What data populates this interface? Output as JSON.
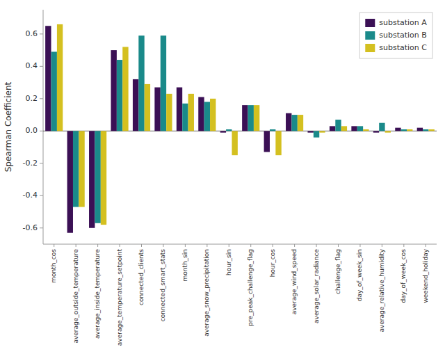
{
  "chart_data": {
    "type": "bar",
    "categories": [
      "month_cos",
      "average_outside_temperature",
      "average_inside_temperature",
      "average_temperature_setpoint",
      "connected_clients",
      "connected_smart_stats",
      "month_sin",
      "average_snow_precipitation",
      "hour_sin",
      "pre_peak_challenge_flag",
      "hour_cos",
      "average_wind_speed",
      "average_solar_radiance",
      "challenge_flag",
      "day_of_week_sin",
      "average_relative_humidity",
      "day_of_week_cos",
      "weekend_holiday"
    ],
    "series": [
      {
        "name": "substation A",
        "color": "#3b1055",
        "values": [
          0.65,
          -0.63,
          -0.6,
          0.5,
          0.32,
          0.27,
          0.27,
          0.21,
          -0.01,
          0.16,
          -0.13,
          0.11,
          -0.01,
          0.03,
          0.03,
          -0.01,
          0.02,
          0.02
        ]
      },
      {
        "name": "substation B",
        "color": "#1a8a8a",
        "values": [
          0.49,
          -0.47,
          -0.57,
          0.44,
          0.59,
          0.59,
          0.17,
          0.18,
          0.01,
          0.16,
          0.01,
          0.1,
          -0.04,
          0.07,
          0.03,
          0.05,
          0.01,
          0.01
        ]
      },
      {
        "name": "substation C",
        "color": "#d4c020",
        "values": [
          0.66,
          -0.47,
          -0.58,
          0.52,
          0.29,
          0.23,
          0.23,
          0.2,
          -0.15,
          0.16,
          -0.15,
          0.1,
          -0.01,
          0.03,
          0.01,
          -0.01,
          0.01,
          0.01
        ]
      }
    ],
    "y_label": "Spearman Coefficient",
    "ylim": [
      -0.7,
      0.75
    ],
    "yticks": [
      -0.6,
      -0.4,
      -0.2,
      {
        "value": 0,
        "label": "0.0"
      },
      0.2,
      0.4,
      0.6
    ],
    "grid": false,
    "legend": "upper right"
  }
}
